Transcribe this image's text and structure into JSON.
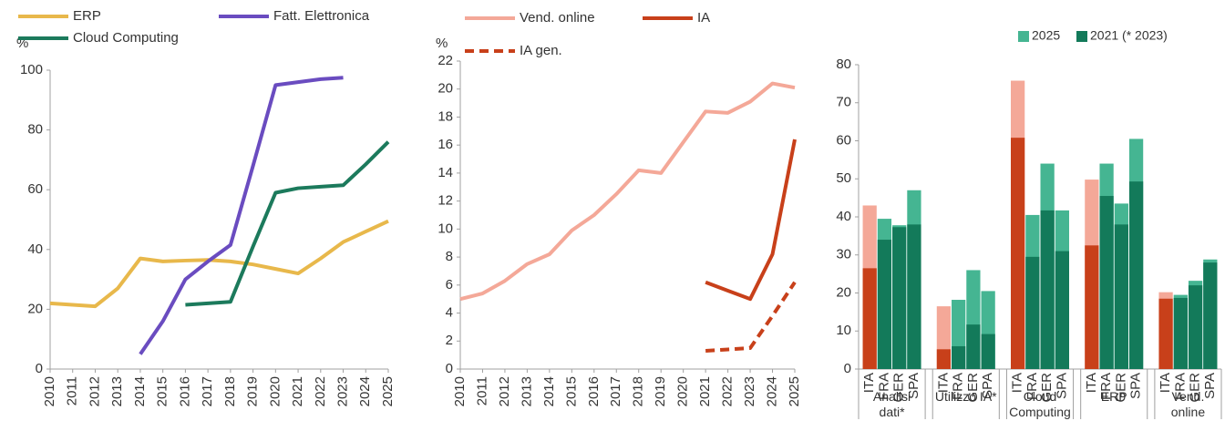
{
  "chart_data": [
    {
      "type": "line",
      "y_label": "%",
      "x": [
        2010,
        2011,
        2012,
        2013,
        2014,
        2015,
        2016,
        2017,
        2018,
        2019,
        2020,
        2021,
        2022,
        2023,
        2024,
        2025
      ],
      "xlim": [
        2010,
        2025
      ],
      "xticks": [
        2010,
        2011,
        2012,
        2013,
        2014,
        2015,
        2016,
        2017,
        2018,
        2019,
        2020,
        2021,
        2022,
        2023,
        2024,
        2025
      ],
      "ylim": [
        0,
        100
      ],
      "yticks": [
        0,
        20,
        40,
        60,
        80,
        100
      ],
      "series": [
        {
          "name": "ERP",
          "color": "#e8b84b",
          "values": [
            22,
            21.5,
            21,
            27,
            37,
            36,
            36.3,
            36.5,
            36,
            35,
            33.5,
            32,
            37,
            42.5,
            46,
            49.5
          ]
        },
        {
          "name": "Fatt. Elettronica",
          "color": "#6a4cc0",
          "values": [
            null,
            null,
            null,
            null,
            5,
            16,
            30,
            36,
            41.5,
            68,
            95,
            96,
            97,
            97.5,
            null,
            null
          ]
        },
        {
          "name": "Cloud Computing",
          "color": "#1c7a5c",
          "values": [
            null,
            null,
            null,
            null,
            null,
            null,
            21.5,
            22,
            22.5,
            41,
            59,
            60.5,
            61,
            61.5,
            68.5,
            76
          ]
        }
      ]
    },
    {
      "type": "line",
      "y_label": "%",
      "x": [
        2010,
        2011,
        2012,
        2013,
        2014,
        2015,
        2016,
        2017,
        2018,
        2019,
        2020,
        2021,
        2022,
        2023,
        2024,
        2025
      ],
      "xlim": [
        2010,
        2025
      ],
      "xticks": [
        2010,
        2011,
        2012,
        2013,
        2014,
        2015,
        2016,
        2017,
        2018,
        2019,
        2020,
        2021,
        2022,
        2023,
        2024,
        2025
      ],
      "ylim": [
        0,
        22
      ],
      "yticks": [
        0,
        2,
        4,
        6,
        8,
        10,
        12,
        14,
        16,
        18,
        20,
        22
      ],
      "series": [
        {
          "name": "Vend. online",
          "color": "#f4a898",
          "values": [
            5,
            5.4,
            6.3,
            7.5,
            8.2,
            9.9,
            11,
            12.5,
            14.2,
            14,
            16.2,
            18.4,
            18.3,
            19.1,
            20.4,
            20.1
          ]
        },
        {
          "name": "IA",
          "color": "#c8401a",
          "values": [
            null,
            null,
            null,
            null,
            null,
            null,
            null,
            null,
            null,
            null,
            null,
            6.2,
            5.6,
            5,
            8.2,
            16.4
          ]
        },
        {
          "name": "IA gen.",
          "color": "#c8401a",
          "dashed": true,
          "values": [
            null,
            null,
            null,
            null,
            null,
            null,
            null,
            null,
            null,
            null,
            null,
            1.3,
            1.4,
            1.5,
            3.8,
            6.2
          ]
        }
      ]
    },
    {
      "type": "bar",
      "overlap": true,
      "groups": [
        "Analisi dati*",
        "Utilizzo IA*",
        "Cloud Computing",
        "ERP",
        "Vend. online"
      ],
      "subcategories": [
        "ITA",
        "FRA",
        "GER",
        "SPA"
      ],
      "highlight_subcategory": 0,
      "ylim": [
        0,
        80
      ],
      "yticks": [
        0,
        10,
        20,
        30,
        40,
        50,
        60,
        70,
        80
      ],
      "series": [
        {
          "name": "2025",
          "color": "#45b592",
          "highlight_color": "#f4a898",
          "values": [
            43,
            39.5,
            37.8,
            47,
            16.5,
            18.2,
            26,
            20.5,
            75.8,
            40.5,
            54,
            41.7,
            49.8,
            54,
            43.5,
            60.5,
            20.2,
            19.5,
            23.2,
            28.8
          ]
        },
        {
          "name": "2021 (* 2023)",
          "color": "#137a5a",
          "highlight_color": "#c8401a",
          "values": [
            26.5,
            34,
            37.3,
            38,
            5.2,
            6,
            11.7,
            9.2,
            60.8,
            29.5,
            41.7,
            31,
            32.5,
            45.5,
            38,
            49.3,
            18.5,
            18.7,
            22,
            28
          ]
        }
      ]
    }
  ]
}
